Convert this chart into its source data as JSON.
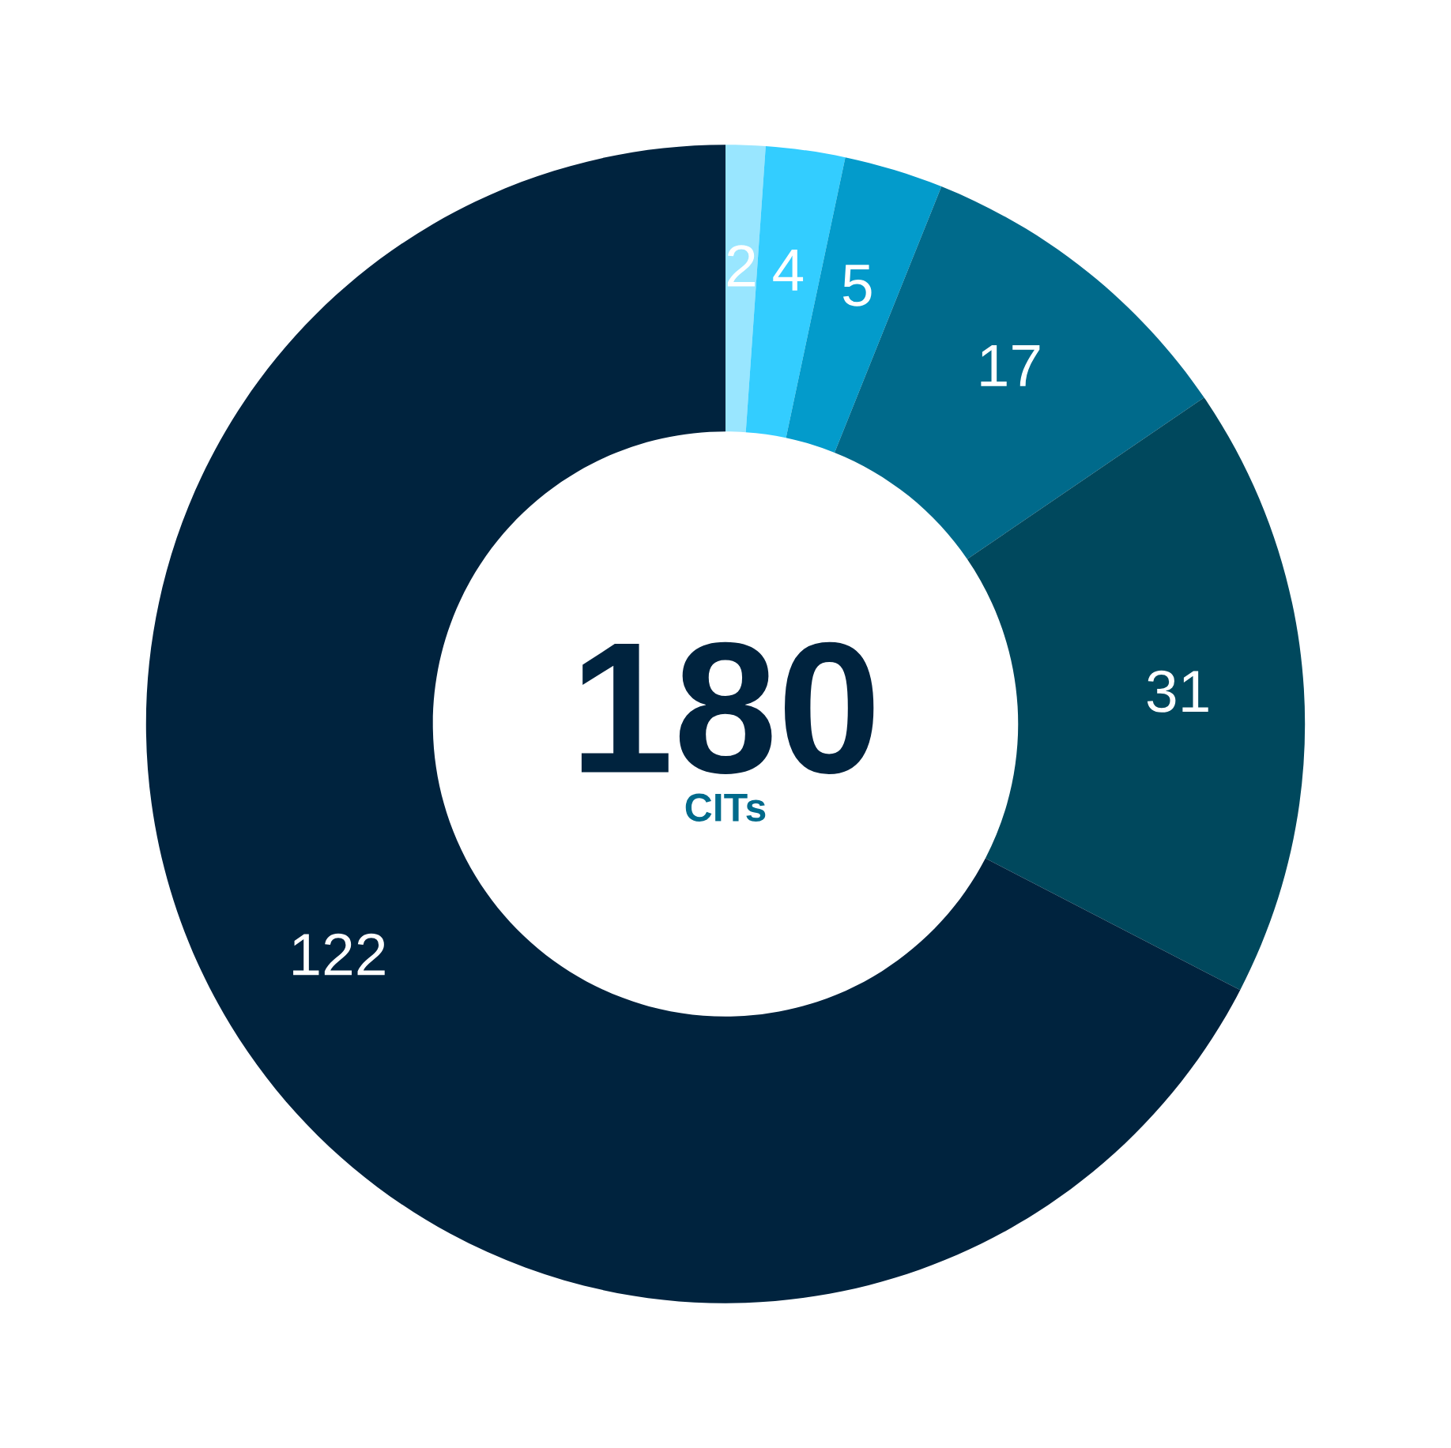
{
  "chart_data": {
    "type": "donut",
    "title": "180",
    "subtitle": "CITs",
    "categories": [
      null,
      null,
      null,
      null,
      null,
      null
    ],
    "values": [
      2,
      4,
      5,
      17,
      31,
      122
    ],
    "colors": [
      "#99e6ff",
      "#33cdff",
      "#039bcb",
      "#006a8b",
      "#00485d",
      "#00233e"
    ],
    "data_labels": true
  }
}
